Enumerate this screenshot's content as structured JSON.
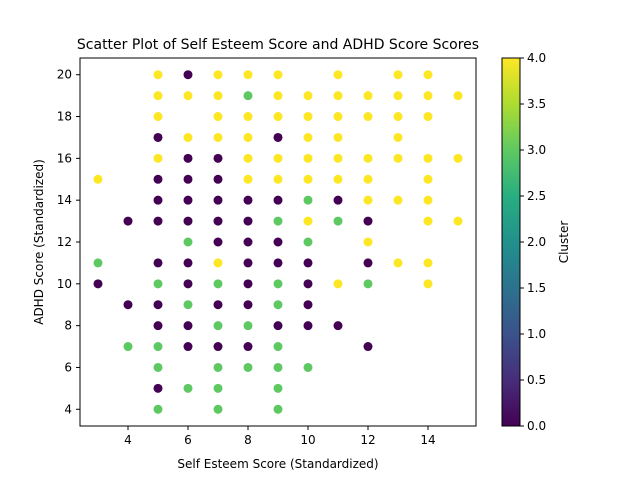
{
  "chart_data": {
    "type": "scatter",
    "title": "Scatter Plot of Self Esteem Score and ADHD Score Scores",
    "xlabel": "Self Esteem Score (Standardized)",
    "ylabel": "ADHD Score (Standardized)",
    "xlim": [
      2.4,
      15.6
    ],
    "ylim": [
      3.2,
      20.8
    ],
    "xticks": [
      4,
      6,
      8,
      10,
      12,
      14
    ],
    "yticks": [
      4,
      6,
      8,
      10,
      12,
      14,
      16,
      18,
      20
    ],
    "colorbar": {
      "label": "Cluster",
      "min": 0,
      "max": 4,
      "ticks": [
        "0.0",
        "0.5",
        "1.0",
        "1.5",
        "2.0",
        "2.5",
        "3.0",
        "3.5",
        "4.0"
      ],
      "colormap": "viridis"
    },
    "cluster_colors": {
      "0": "#440154",
      "3": "#5ec962",
      "4": "#fde725"
    },
    "points": [
      {
        "x": 3,
        "y": 15,
        "c": 4
      },
      {
        "x": 3,
        "y": 11,
        "c": 3
      },
      {
        "x": 3,
        "y": 10,
        "c": 0
      },
      {
        "x": 4,
        "y": 13,
        "c": 0
      },
      {
        "x": 4,
        "y": 9,
        "c": 0
      },
      {
        "x": 4,
        "y": 7,
        "c": 3
      },
      {
        "x": 5,
        "y": 20,
        "c": 4
      },
      {
        "x": 5,
        "y": 19,
        "c": 4
      },
      {
        "x": 5,
        "y": 18,
        "c": 4
      },
      {
        "x": 5,
        "y": 17,
        "c": 0
      },
      {
        "x": 5,
        "y": 16,
        "c": 4
      },
      {
        "x": 5,
        "y": 15,
        "c": 0
      },
      {
        "x": 5,
        "y": 14,
        "c": 0
      },
      {
        "x": 5,
        "y": 13,
        "c": 0
      },
      {
        "x": 5,
        "y": 11,
        "c": 0
      },
      {
        "x": 5,
        "y": 10,
        "c": 3
      },
      {
        "x": 5,
        "y": 9,
        "c": 0
      },
      {
        "x": 5,
        "y": 8,
        "c": 0
      },
      {
        "x": 5,
        "y": 7,
        "c": 3
      },
      {
        "x": 5,
        "y": 6,
        "c": 3
      },
      {
        "x": 5,
        "y": 5,
        "c": 0
      },
      {
        "x": 5,
        "y": 4,
        "c": 3
      },
      {
        "x": 6,
        "y": 20,
        "c": 0
      },
      {
        "x": 6,
        "y": 19,
        "c": 4
      },
      {
        "x": 6,
        "y": 17,
        "c": 4
      },
      {
        "x": 6,
        "y": 16,
        "c": 0
      },
      {
        "x": 6,
        "y": 15,
        "c": 0
      },
      {
        "x": 6,
        "y": 14,
        "c": 0
      },
      {
        "x": 6,
        "y": 13,
        "c": 0
      },
      {
        "x": 6,
        "y": 12,
        "c": 3
      },
      {
        "x": 6,
        "y": 11,
        "c": 0
      },
      {
        "x": 6,
        "y": 10,
        "c": 0
      },
      {
        "x": 6,
        "y": 9,
        "c": 3
      },
      {
        "x": 6,
        "y": 8,
        "c": 0
      },
      {
        "x": 6,
        "y": 7,
        "c": 0
      },
      {
        "x": 6,
        "y": 5,
        "c": 3
      },
      {
        "x": 7,
        "y": 20,
        "c": 4
      },
      {
        "x": 7,
        "y": 19,
        "c": 4
      },
      {
        "x": 7,
        "y": 18,
        "c": 4
      },
      {
        "x": 7,
        "y": 17,
        "c": 4
      },
      {
        "x": 7,
        "y": 16,
        "c": 0
      },
      {
        "x": 7,
        "y": 15,
        "c": 0
      },
      {
        "x": 7,
        "y": 14,
        "c": 0
      },
      {
        "x": 7,
        "y": 13,
        "c": 0
      },
      {
        "x": 7,
        "y": 12,
        "c": 0
      },
      {
        "x": 7,
        "y": 11,
        "c": 4
      },
      {
        "x": 7,
        "y": 10,
        "c": 3
      },
      {
        "x": 7,
        "y": 9,
        "c": 0
      },
      {
        "x": 7,
        "y": 8,
        "c": 3
      },
      {
        "x": 7,
        "y": 7,
        "c": 0
      },
      {
        "x": 7,
        "y": 6,
        "c": 3
      },
      {
        "x": 7,
        "y": 5,
        "c": 3
      },
      {
        "x": 7,
        "y": 4,
        "c": 3
      },
      {
        "x": 8,
        "y": 20,
        "c": 4
      },
      {
        "x": 8,
        "y": 19,
        "c": 3
      },
      {
        "x": 8,
        "y": 18,
        "c": 4
      },
      {
        "x": 8,
        "y": 17,
        "c": 4
      },
      {
        "x": 8,
        "y": 16,
        "c": 4
      },
      {
        "x": 8,
        "y": 15,
        "c": 4
      },
      {
        "x": 8,
        "y": 14,
        "c": 0
      },
      {
        "x": 8,
        "y": 13,
        "c": 0
      },
      {
        "x": 8,
        "y": 12,
        "c": 0
      },
      {
        "x": 8,
        "y": 11,
        "c": 0
      },
      {
        "x": 8,
        "y": 10,
        "c": 0
      },
      {
        "x": 8,
        "y": 9,
        "c": 0
      },
      {
        "x": 8,
        "y": 8,
        "c": 3
      },
      {
        "x": 8,
        "y": 7,
        "c": 0
      },
      {
        "x": 8,
        "y": 6,
        "c": 3
      },
      {
        "x": 9,
        "y": 20,
        "c": 4
      },
      {
        "x": 9,
        "y": 19,
        "c": 4
      },
      {
        "x": 9,
        "y": 18,
        "c": 4
      },
      {
        "x": 9,
        "y": 17,
        "c": 0
      },
      {
        "x": 9,
        "y": 16,
        "c": 4
      },
      {
        "x": 9,
        "y": 15,
        "c": 4
      },
      {
        "x": 9,
        "y": 14,
        "c": 0
      },
      {
        "x": 9,
        "y": 13,
        "c": 3
      },
      {
        "x": 9,
        "y": 12,
        "c": 0
      },
      {
        "x": 9,
        "y": 11,
        "c": 0
      },
      {
        "x": 9,
        "y": 10,
        "c": 3
      },
      {
        "x": 9,
        "y": 9,
        "c": 3
      },
      {
        "x": 9,
        "y": 8,
        "c": 0
      },
      {
        "x": 9,
        "y": 7,
        "c": 3
      },
      {
        "x": 9,
        "y": 6,
        "c": 3
      },
      {
        "x": 9,
        "y": 5,
        "c": 3
      },
      {
        "x": 9,
        "y": 4,
        "c": 3
      },
      {
        "x": 10,
        "y": 19,
        "c": 4
      },
      {
        "x": 10,
        "y": 18,
        "c": 4
      },
      {
        "x": 10,
        "y": 17,
        "c": 4
      },
      {
        "x": 10,
        "y": 16,
        "c": 4
      },
      {
        "x": 10,
        "y": 15,
        "c": 4
      },
      {
        "x": 10,
        "y": 14,
        "c": 3
      },
      {
        "x": 10,
        "y": 13,
        "c": 4
      },
      {
        "x": 10,
        "y": 12,
        "c": 3
      },
      {
        "x": 10,
        "y": 11,
        "c": 0
      },
      {
        "x": 10,
        "y": 10,
        "c": 0
      },
      {
        "x": 10,
        "y": 9,
        "c": 0
      },
      {
        "x": 10,
        "y": 8,
        "c": 0
      },
      {
        "x": 10,
        "y": 6,
        "c": 3
      },
      {
        "x": 11,
        "y": 20,
        "c": 4
      },
      {
        "x": 11,
        "y": 19,
        "c": 4
      },
      {
        "x": 11,
        "y": 18,
        "c": 4
      },
      {
        "x": 11,
        "y": 17,
        "c": 4
      },
      {
        "x": 11,
        "y": 16,
        "c": 4
      },
      {
        "x": 11,
        "y": 15,
        "c": 4
      },
      {
        "x": 11,
        "y": 14,
        "c": 0
      },
      {
        "x": 11,
        "y": 13,
        "c": 3
      },
      {
        "x": 11,
        "y": 10,
        "c": 4
      },
      {
        "x": 11,
        "y": 8,
        "c": 0
      },
      {
        "x": 12,
        "y": 19,
        "c": 4
      },
      {
        "x": 12,
        "y": 18,
        "c": 4
      },
      {
        "x": 12,
        "y": 16,
        "c": 4
      },
      {
        "x": 12,
        "y": 15,
        "c": 4
      },
      {
        "x": 12,
        "y": 14,
        "c": 4
      },
      {
        "x": 12,
        "y": 13,
        "c": 0
      },
      {
        "x": 12,
        "y": 12,
        "c": 4
      },
      {
        "x": 12,
        "y": 11,
        "c": 0
      },
      {
        "x": 12,
        "y": 10,
        "c": 3
      },
      {
        "x": 12,
        "y": 7,
        "c": 0
      },
      {
        "x": 13,
        "y": 20,
        "c": 4
      },
      {
        "x": 13,
        "y": 19,
        "c": 4
      },
      {
        "x": 13,
        "y": 18,
        "c": 4
      },
      {
        "x": 13,
        "y": 17,
        "c": 4
      },
      {
        "x": 13,
        "y": 16,
        "c": 4
      },
      {
        "x": 13,
        "y": 14,
        "c": 4
      },
      {
        "x": 13,
        "y": 11,
        "c": 4
      },
      {
        "x": 14,
        "y": 20,
        "c": 4
      },
      {
        "x": 14,
        "y": 19,
        "c": 4
      },
      {
        "x": 14,
        "y": 18,
        "c": 4
      },
      {
        "x": 14,
        "y": 16,
        "c": 4
      },
      {
        "x": 14,
        "y": 15,
        "c": 4
      },
      {
        "x": 14,
        "y": 14,
        "c": 4
      },
      {
        "x": 14,
        "y": 13,
        "c": 4
      },
      {
        "x": 14,
        "y": 11,
        "c": 4
      },
      {
        "x": 14,
        "y": 10,
        "c": 4
      },
      {
        "x": 15,
        "y": 19,
        "c": 4
      },
      {
        "x": 15,
        "y": 16,
        "c": 4
      },
      {
        "x": 15,
        "y": 13,
        "c": 4
      }
    ]
  }
}
